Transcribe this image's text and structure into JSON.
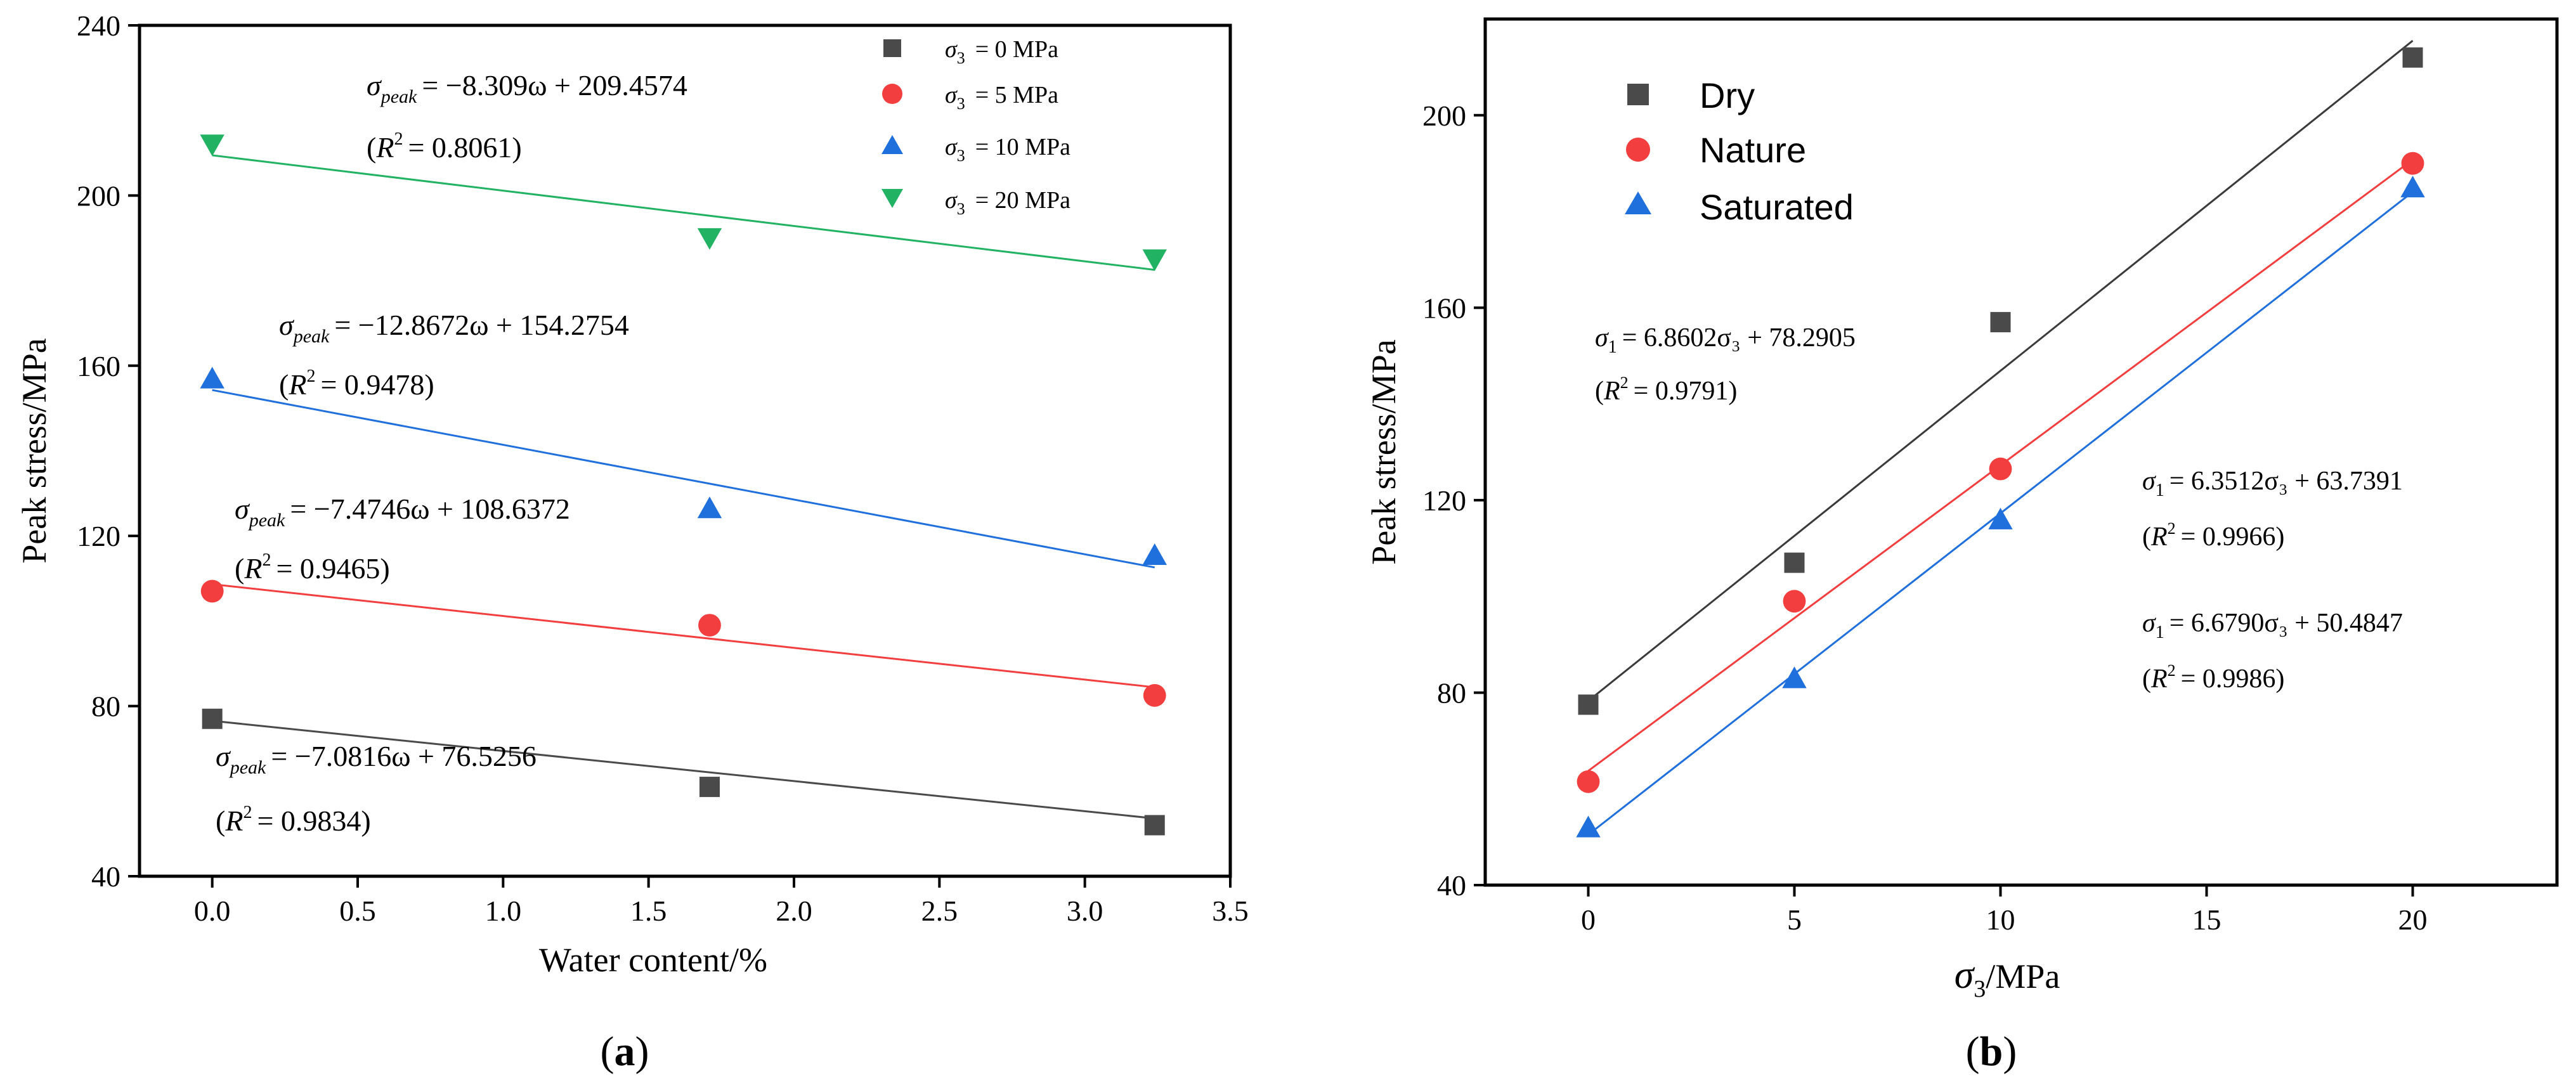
{
  "chart_data": [
    {
      "type": "scatter",
      "panel_label": "a",
      "xlabel": "Water content/%",
      "ylabel": "Peak stress/MPa",
      "xlim": [
        -0.25,
        3.5
      ],
      "ylim": [
        40,
        240
      ],
      "xticks": [
        0.0,
        0.5,
        1.0,
        1.5,
        2.0,
        2.5,
        3.0,
        3.5
      ],
      "xtick_labels": [
        "0.0",
        "0.5",
        "1.0",
        "1.5",
        "2.0",
        "2.5",
        "3.0",
        "3.5"
      ],
      "yticks": [
        40,
        80,
        120,
        160,
        200,
        240
      ],
      "ytick_labels": [
        "40",
        "80",
        "120",
        "160",
        "200",
        "240"
      ],
      "legend": {
        "position": "top-right"
      },
      "series": [
        {
          "name": "σ3 = 0 MPa",
          "legend_sym": "σ",
          "legend_sub": "3",
          "legend_val": "=  0 MPa",
          "marker": "square",
          "color": "#4a4a4a",
          "x": [
            0.0,
            1.71,
            3.24
          ],
          "y": [
            77,
            61,
            52
          ],
          "fit": {
            "slope": -7.0816,
            "intercept": 76.5256,
            "eq_sym": "σ",
            "eq_sub": "peak",
            "eq_rhs": "= −7.0816ω + 76.5256",
            "r2": "= 0.9834"
          }
        },
        {
          "name": "σ3 = 5 MPa",
          "legend_sym": "σ",
          "legend_sub": "3",
          "legend_val": "=  5 MPa",
          "marker": "circle",
          "color": "#f23e3e",
          "x": [
            0.0,
            1.71,
            3.24
          ],
          "y": [
            107,
            99,
            82.5
          ],
          "fit": {
            "slope": -7.4746,
            "intercept": 108.6372,
            "eq_sym": "σ",
            "eq_sub": "peak",
            "eq_rhs": "= −7.4746ω + 108.6372",
            "r2": "= 0.9465"
          }
        },
        {
          "name": "σ3 = 10 MPa",
          "legend_sym": "σ",
          "legend_sub": "3",
          "legend_val": "=  10 MPa",
          "marker": "triangle-up",
          "color": "#1f6fdc",
          "x": [
            0.0,
            1.71,
            3.24
          ],
          "y": [
            157,
            126.5,
            115.5
          ],
          "fit": {
            "slope": -12.8672,
            "intercept": 154.2754,
            "eq_sym": "σ",
            "eq_sub": "peak",
            "eq_rhs": "= −12.8672ω + 154.2754",
            "r2": "= 0.9478"
          }
        },
        {
          "name": "σ3 = 20 MPa",
          "legend_sym": "σ",
          "legend_sub": "3",
          "legend_val": "=  20 MPa",
          "marker": "triangle-down",
          "color": "#21b363",
          "x": [
            0.0,
            1.71,
            3.24
          ],
          "y": [
            212,
            190,
            185
          ],
          "fit": {
            "slope": -8.309,
            "intercept": 209.4574,
            "eq_sym": "σ",
            "eq_sub": "peak",
            "eq_rhs": "= −8.309ω + 209.4574",
            "r2": "= 0.8061"
          }
        }
      ]
    },
    {
      "type": "scatter",
      "panel_label": "b",
      "xlabel_sym": "σ",
      "xlabel_sub": "3",
      "xlabel_rest": "/MPa",
      "ylabel": "Peak stress/MPa",
      "xlim": [
        -2.5,
        23.5
      ],
      "ylim": [
        40,
        220
      ],
      "xticks": [
        0,
        5,
        10,
        15,
        20
      ],
      "xtick_labels": [
        "0",
        "5",
        "10",
        "15",
        "20"
      ],
      "yticks": [
        40,
        80,
        120,
        160,
        200
      ],
      "ytick_labels": [
        "40",
        "80",
        "120",
        "160",
        "200"
      ],
      "legend": {
        "position": "top-left"
      },
      "series": [
        {
          "name": "Dry",
          "marker": "square",
          "color": "#4a4a4a",
          "line_color": "#3a3a3a",
          "x": [
            0,
            5,
            10,
            20
          ],
          "y": [
            77.5,
            107,
            157,
            212
          ],
          "fit": {
            "slope": 6.8602,
            "intercept": 78.2905,
            "eq_sym": "σ",
            "eq_sub": "1",
            "eq_rhs": "= 6.8602σ₃ + 78.2905",
            "r2": "= 0.9791"
          }
        },
        {
          "name": "Nature",
          "marker": "circle",
          "color": "#f23e3e",
          "line_color": "#f23e3e",
          "x": [
            0,
            5,
            10,
            20
          ],
          "y": [
            61.5,
            99,
            126.5,
            190
          ],
          "fit": {
            "slope": 6.3512,
            "intercept": 63.7391,
            "eq_sym": "σ",
            "eq_sub": "1",
            "eq_rhs": "= 6.3512σ₃ + 63.7391",
            "r2": "= 0.9966"
          }
        },
        {
          "name": "Saturated",
          "marker": "triangle-up",
          "color": "#1f6fdc",
          "line_color": "#1f6fdc",
          "x": [
            0,
            5,
            10,
            20
          ],
          "y": [
            52,
            83,
            116,
            185
          ],
          "fit": {
            "slope": 6.679,
            "intercept": 50.4847,
            "eq_sym": "σ",
            "eq_sub": "1",
            "eq_rhs": "= 6.6790σ₃ + 50.4847",
            "r2": "= 0.9986"
          }
        }
      ]
    }
  ]
}
